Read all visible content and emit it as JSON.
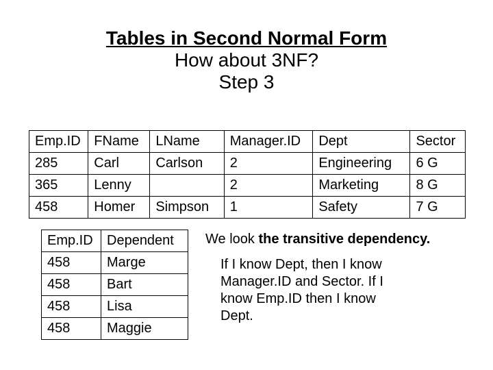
{
  "title": {
    "main": "Tables in Second Normal Form",
    "sub": "How about 3NF?",
    "step": "Step 3"
  },
  "employee_table": {
    "columns": [
      "Emp.ID",
      "FName",
      "LName",
      "Manager.ID",
      "Dept",
      "Sector"
    ],
    "rows": [
      [
        "285",
        "Carl",
        "Carlson",
        "2",
        "Engineering",
        "6 G"
      ],
      [
        "365",
        "Lenny",
        "",
        "2",
        "Marketing",
        "8 G"
      ],
      [
        "458",
        "Homer",
        "Simpson",
        "1",
        "Safety",
        "7 G"
      ]
    ],
    "border_color": "#000000",
    "background_color": "#ffffff",
    "font_size": 20
  },
  "dependent_table": {
    "columns": [
      "Emp.ID",
      "Dependent"
    ],
    "rows": [
      [
        "458",
        "Marge"
      ],
      [
        "458",
        "Bart"
      ],
      [
        "458",
        "Lisa"
      ],
      [
        "458",
        "Maggie"
      ]
    ],
    "border_color": "#000000",
    "background_color": "#ffffff",
    "font_size": 20
  },
  "notes": {
    "line1_pre": "We look ",
    "line1_bold": "the transitive dependency.",
    "box": "If I know Dept, then I know Manager.ID and Sector. If I know Emp.ID then I know Dept."
  },
  "colors": {
    "text": "#000000",
    "background": "#ffffff"
  }
}
